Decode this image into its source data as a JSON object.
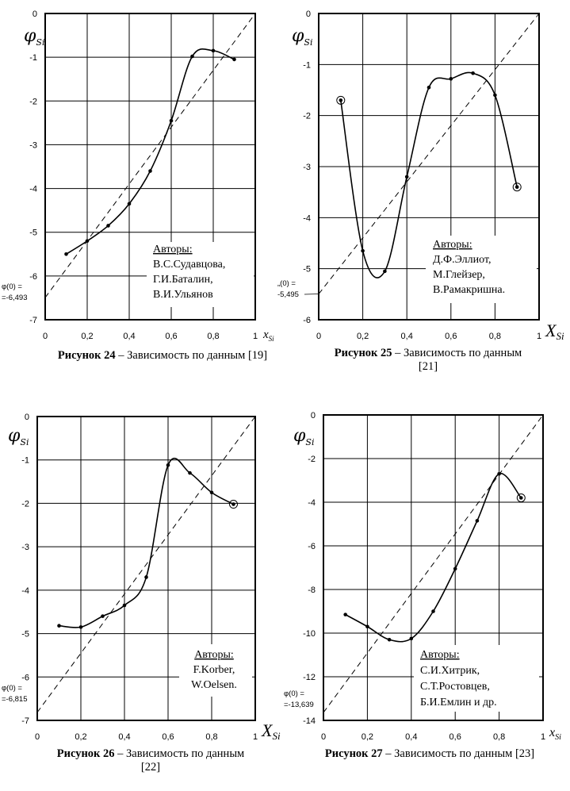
{
  "charts": [
    {
      "caption_bold": "Рисунок 24",
      "caption_text": " – Зависимость  по данным [19]",
      "caption_line2": "",
      "authors_title": "Авторы:",
      "authors": [
        "В.С.Судавцова,",
        "Г.И.Баталин,",
        "В.И.Ульянов"
      ],
      "y_axis_label": "φ",
      "y_axis_sub": "Si",
      "x_axis_label": "x",
      "x_axis_sub": "Si",
      "intercept_label": [
        "φ(0) =",
        "=-6,493"
      ],
      "chart_data": {
        "type": "line",
        "x": [
          0.1,
          0.2,
          0.3,
          0.4,
          0.5,
          0.6,
          0.7,
          0.8,
          0.9
        ],
        "y": [
          -5.5,
          -5.2,
          -4.85,
          -4.35,
          -3.6,
          -2.45,
          -0.98,
          -0.85,
          -1.05
        ],
        "circled_points": [],
        "reference_line": {
          "x": [
            0,
            1
          ],
          "y": [
            -6.493,
            0
          ],
          "style": "dashed"
        },
        "xlim": [
          0,
          1
        ],
        "ylim": [
          -7,
          0
        ],
        "xtick_labels": [
          "0",
          "0,2",
          "0,4",
          "0,6",
          "0,8",
          "1"
        ],
        "ytick_labels": [
          "0",
          "-1",
          "-2",
          "-3",
          "-4",
          "-5",
          "-6",
          "-7"
        ],
        "grid": true
      }
    },
    {
      "caption_bold": "Рисунок 25",
      "caption_text": " – Зависимость  по данным",
      "caption_line2": "[21]",
      "authors_title": "Авторы:",
      "authors": [
        "Д.Ф.Эллиот,",
        "М.Глейзер,",
        "В.Рамакришна."
      ],
      "y_axis_label": "φ",
      "y_axis_sub": "Si",
      "x_axis_label": "X",
      "x_axis_sub": "Si",
      "intercept_label": [
        "„(0) =",
        "-5,495"
      ],
      "chart_data": {
        "type": "line",
        "x": [
          0.1,
          0.2,
          0.3,
          0.4,
          0.5,
          0.6,
          0.7,
          0.8,
          0.9
        ],
        "y": [
          -1.7,
          -4.65,
          -5.05,
          -3.2,
          -1.45,
          -1.28,
          -1.17,
          -1.6,
          -3.4
        ],
        "circled_points": [
          0,
          8
        ],
        "reference_line": {
          "x": [
            0,
            1
          ],
          "y": [
            -5.495,
            0
          ],
          "style": "dashed"
        },
        "xlim": [
          0,
          1
        ],
        "ylim": [
          -6,
          0
        ],
        "xtick_labels": [
          "0",
          "0,2",
          "0,4",
          "0,6",
          "0,8",
          "1"
        ],
        "ytick_labels": [
          "0",
          "-1",
          "-2",
          "-3",
          "-4",
          "-5",
          "-6"
        ],
        "grid": true
      }
    },
    {
      "caption_bold": "Рисунок 26",
      "caption_text": " – Зависимость  по данным",
      "caption_line2": "[22]",
      "authors_title": "Авторы:",
      "authors": [
        "F.Korber,",
        "W.Oelsen."
      ],
      "y_axis_label": "φ",
      "y_axis_sub": "Si",
      "x_axis_label": "X",
      "x_axis_sub": "Si",
      "intercept_label": [
        "φ(0) =",
        "=-6,815"
      ],
      "chart_data": {
        "type": "line",
        "x": [
          0.1,
          0.2,
          0.3,
          0.4,
          0.5,
          0.6,
          0.7,
          0.8,
          0.9
        ],
        "y": [
          -4.82,
          -4.85,
          -4.6,
          -4.35,
          -3.7,
          -1.12,
          -1.3,
          -1.75,
          -2.02
        ],
        "circled_points": [
          8
        ],
        "reference_line": {
          "x": [
            0,
            1
          ],
          "y": [
            -6.815,
            0
          ],
          "style": "dashed"
        },
        "xlim": [
          0,
          1
        ],
        "ylim": [
          -7,
          0
        ],
        "xtick_labels": [
          "0",
          "0,2",
          "0,4",
          "0,6",
          "0,8",
          "1"
        ],
        "ytick_labels": [
          "0",
          "-1",
          "-2",
          "-3",
          "-4",
          "-5",
          "-6",
          "-7"
        ],
        "grid": true
      }
    },
    {
      "caption_bold": "Рисунок 27",
      "caption_text": " – Зависимость  по данным [23]",
      "caption_line2": "",
      "authors_title": "Авторы:",
      "authors": [
        "С.И.Хитрик,",
        "С.Т.Ростовцев,",
        "Б.И.Емлин и др."
      ],
      "y_axis_label": "φ",
      "y_axis_sub": "Si",
      "x_axis_label": "x",
      "x_axis_sub": "Si",
      "intercept_label": [
        "φ(0) =",
        "=-13,639"
      ],
      "chart_data": {
        "type": "line",
        "x": [
          0.1,
          0.2,
          0.3,
          0.4,
          0.5,
          0.6,
          0.7,
          0.8,
          0.9
        ],
        "y": [
          -9.15,
          -9.7,
          -10.3,
          -10.25,
          -9.0,
          -7.05,
          -4.85,
          -2.7,
          -3.8
        ],
        "circled_points": [
          8
        ],
        "reference_line": {
          "x": [
            0,
            1
          ],
          "y": [
            -13.639,
            0
          ],
          "style": "dashed"
        },
        "xlim": [
          0,
          1
        ],
        "ylim": [
          -14,
          0
        ],
        "xtick_labels": [
          "0",
          "0,2",
          "0,4",
          "0,6",
          "0,8",
          "1"
        ],
        "ytick_labels": [
          "0",
          "-2",
          "-4",
          "-6",
          "-8",
          "-10",
          "-12",
          "-14"
        ],
        "grid": true
      }
    }
  ]
}
